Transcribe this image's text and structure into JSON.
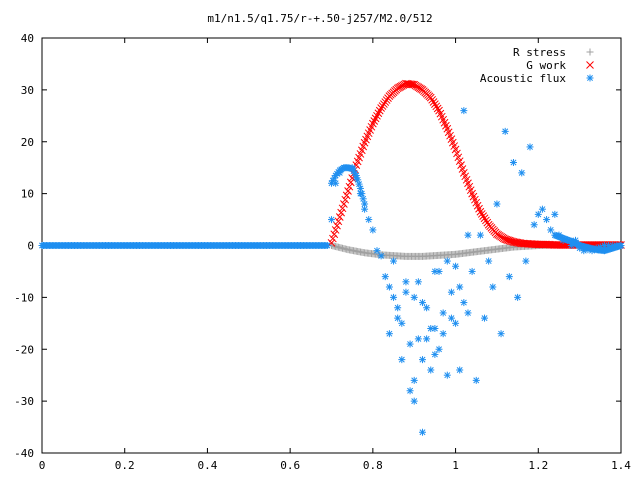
{
  "chart_data": {
    "type": "scatter",
    "title": "m1/n1.5/q1.75/r-+.50-j257/M2.0/512",
    "xlabel": "",
    "ylabel": "",
    "xlim": [
      0,
      1.4
    ],
    "ylim": [
      -40,
      40
    ],
    "xticks": [
      0,
      0.2,
      0.4,
      0.6,
      0.8,
      1,
      1.2,
      1.4
    ],
    "xtick_labels": [
      "0",
      "0.2",
      "0.4",
      "0.6",
      "0.8",
      "1",
      "1.2",
      "1.4"
    ],
    "yticks": [
      -40,
      -30,
      -20,
      -10,
      0,
      10,
      20,
      30,
      40
    ],
    "ytick_labels": [
      "-40",
      "-30",
      "-20",
      "-10",
      "0",
      "10",
      "20",
      "30",
      "40"
    ],
    "grid": false,
    "legend_position": "top-right",
    "series": [
      {
        "name": "R stress",
        "marker": "plus",
        "color": "#a0a0a0",
        "x": [
          0.7,
          0.72,
          0.74,
          0.76,
          0.78,
          0.8,
          0.82,
          0.84,
          0.86,
          0.88,
          0.9,
          0.92,
          0.94,
          0.96,
          0.98,
          1.0,
          1.02,
          1.04,
          1.06,
          1.08,
          1.1,
          1.12,
          1.14,
          1.16,
          1.18,
          1.2,
          1.22,
          1.24,
          1.26,
          1.28,
          1.3,
          1.32,
          1.34,
          1.36,
          1.38,
          1.4
        ],
        "y": [
          0.0,
          -0.4,
          -0.8,
          -1.1,
          -1.4,
          -1.6,
          -1.8,
          -1.9,
          -2.0,
          -2.1,
          -2.1,
          -2.1,
          -2.0,
          -1.9,
          -1.8,
          -1.7,
          -1.5,
          -1.3,
          -1.1,
          -0.9,
          -0.7,
          -0.5,
          -0.3,
          -0.2,
          -0.1,
          0.0,
          0.05,
          0.1,
          0.1,
          0.1,
          0.1,
          0.05,
          0.0,
          0.0,
          0.0,
          0.0
        ]
      },
      {
        "name": "G work",
        "marker": "cross",
        "color": "#ff0000",
        "x": [
          0.7,
          0.72,
          0.74,
          0.76,
          0.78,
          0.8,
          0.82,
          0.84,
          0.86,
          0.88,
          0.9,
          0.92,
          0.94,
          0.96,
          0.98,
          1.0,
          1.02,
          1.04,
          1.06,
          1.08,
          1.1,
          1.12,
          1.14,
          1.16,
          1.18,
          1.2,
          1.22,
          1.24,
          1.26,
          1.28,
          1.3,
          1.32,
          1.34,
          1.36,
          1.38,
          1.4
        ],
        "y": [
          0.5,
          5.5,
          10.5,
          15.5,
          19.8,
          23.5,
          26.5,
          28.8,
          30.3,
          31.2,
          31.0,
          30.0,
          28.5,
          26.0,
          22.5,
          18.5,
          14.0,
          10.0,
          6.5,
          4.0,
          2.2,
          1.2,
          0.7,
          0.4,
          0.3,
          0.2,
          0.2,
          0.1,
          0.1,
          0.1,
          0.1,
          0.1,
          0.1,
          0.1,
          0.1,
          0.1
        ]
      },
      {
        "name": "Acoustic flux",
        "marker": "star",
        "color": "#1f8ff0",
        "x": [
          0.0,
          0.05,
          0.1,
          0.15,
          0.2,
          0.25,
          0.3,
          0.35,
          0.4,
          0.45,
          0.5,
          0.55,
          0.6,
          0.65,
          0.69,
          0.7,
          0.71,
          0.72,
          0.73,
          0.74,
          0.75,
          0.76,
          0.77,
          0.78,
          0.79,
          0.8,
          0.81,
          0.82,
          0.83,
          0.84,
          0.85,
          0.86,
          0.87,
          0.88,
          0.89,
          0.9,
          0.91,
          0.92,
          0.93,
          0.94,
          0.95,
          0.96,
          0.97,
          0.98,
          0.99,
          1.0,
          1.01,
          1.02,
          1.03,
          1.04,
          1.05,
          1.06,
          1.07,
          1.08,
          1.09,
          1.1,
          1.11,
          1.12,
          1.13,
          1.14,
          1.15,
          1.16,
          1.17,
          1.18,
          1.19,
          1.2,
          1.21,
          1.22,
          1.23,
          1.24,
          1.25,
          1.26,
          1.27,
          1.28,
          1.29,
          1.3,
          1.31,
          1.32,
          1.33,
          1.34,
          1.35,
          1.36,
          1.37,
          1.38,
          1.39,
          1.4,
          0.84,
          0.87,
          0.9,
          0.93,
          0.96,
          0.99,
          1.02,
          0.85,
          0.88,
          0.92,
          0.95,
          0.98,
          1.01,
          0.86,
          0.89,
          0.91,
          0.94,
          0.97,
          1.0,
          1.03,
          0.9,
          0.92,
          0.95
        ],
        "y": [
          0,
          0,
          0,
          0,
          0,
          0,
          0,
          0,
          0,
          0,
          0,
          0,
          0,
          0,
          0,
          5,
          12,
          14,
          15,
          15,
          15,
          13,
          10,
          7,
          5,
          3,
          -1,
          -2,
          -6,
          -8,
          -3,
          -12,
          -15,
          -9,
          -28,
          -10,
          -18,
          -36,
          -12,
          -16,
          -21,
          -5,
          -17,
          -25,
          -9,
          -15,
          -24,
          26,
          -13,
          -5,
          -26,
          2,
          -14,
          -3,
          -8,
          8,
          -17,
          22,
          -6,
          16,
          -10,
          14,
          -3,
          19,
          4,
          6,
          7,
          5,
          3,
          6,
          2,
          1,
          1,
          0,
          1,
          -0.5,
          -1,
          -0.8,
          -1,
          -0.5,
          -0.3,
          0,
          0,
          0,
          0,
          0,
          -17,
          -22,
          -30,
          -18,
          -20,
          -14,
          -11,
          -10,
          -7,
          -11,
          -5,
          -3,
          -8,
          -14,
          -19,
          -7,
          -24,
          -13,
          -4,
          2,
          -26,
          -22,
          -16
        ]
      }
    ]
  }
}
